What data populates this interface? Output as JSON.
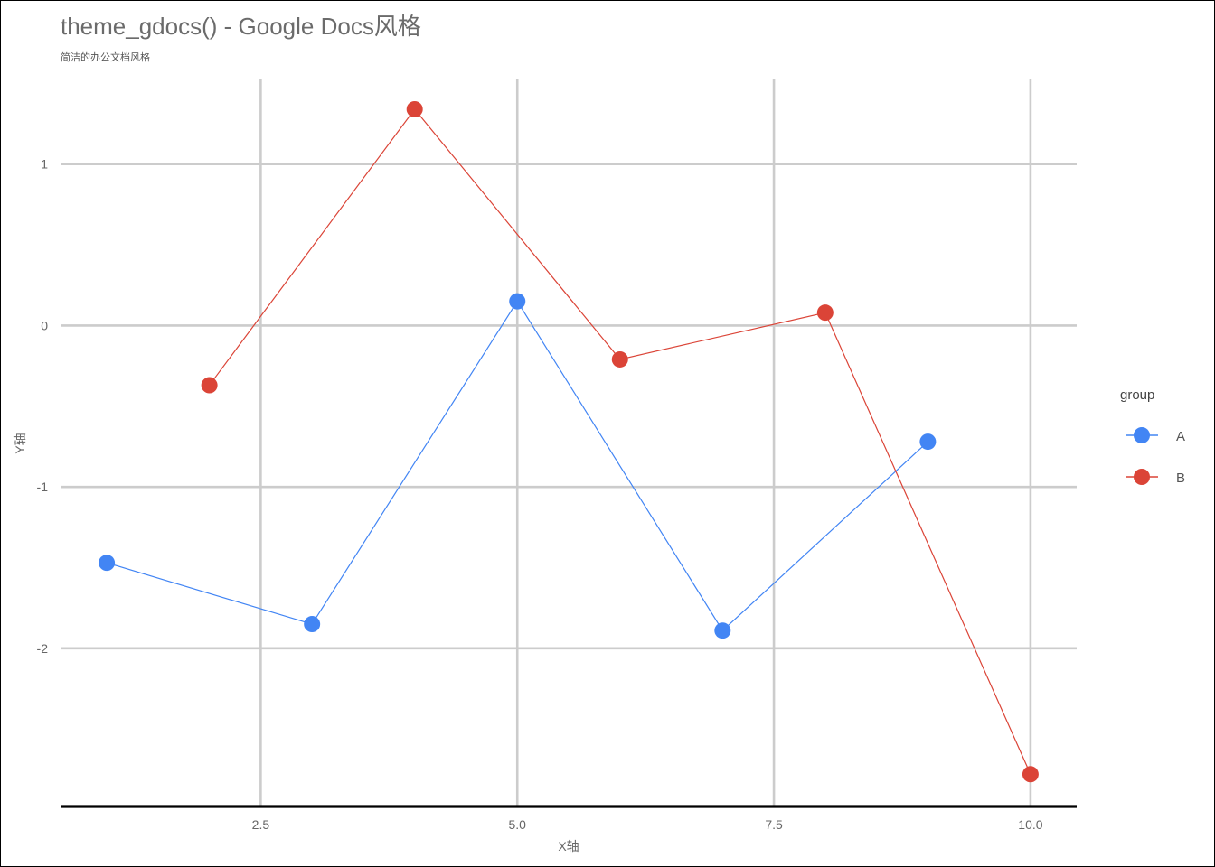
{
  "chart_data": {
    "type": "line",
    "title": "theme_gdocs() - Google Docs风格",
    "subtitle": "简洁的办公文档风格",
    "xlabel": "X轴",
    "ylabel": "Y轴",
    "xlim": [
      0.55,
      10.45
    ],
    "ylim": [
      -2.98,
      1.53
    ],
    "xticks": [
      2.5,
      5.0,
      7.5,
      10.0
    ],
    "xtick_labels": [
      "2.5",
      "5.0",
      "7.5",
      "10.0"
    ],
    "yticks": [
      -2,
      -1,
      0,
      1
    ],
    "ytick_labels": [
      "-2",
      "-1",
      "0",
      "1"
    ],
    "grid": "major x and y",
    "legend": {
      "title": "group",
      "placement": "right"
    },
    "series": [
      {
        "name": "A",
        "color": "#4285f4",
        "x": [
          1,
          3,
          5,
          7,
          9
        ],
        "y": [
          -1.47,
          -1.85,
          0.15,
          -1.89,
          -0.72
        ]
      },
      {
        "name": "B",
        "color": "#db4437",
        "x": [
          2,
          4,
          6,
          8,
          10
        ],
        "y": [
          -0.37,
          1.34,
          -0.21,
          0.08,
          -2.78
        ]
      }
    ]
  }
}
